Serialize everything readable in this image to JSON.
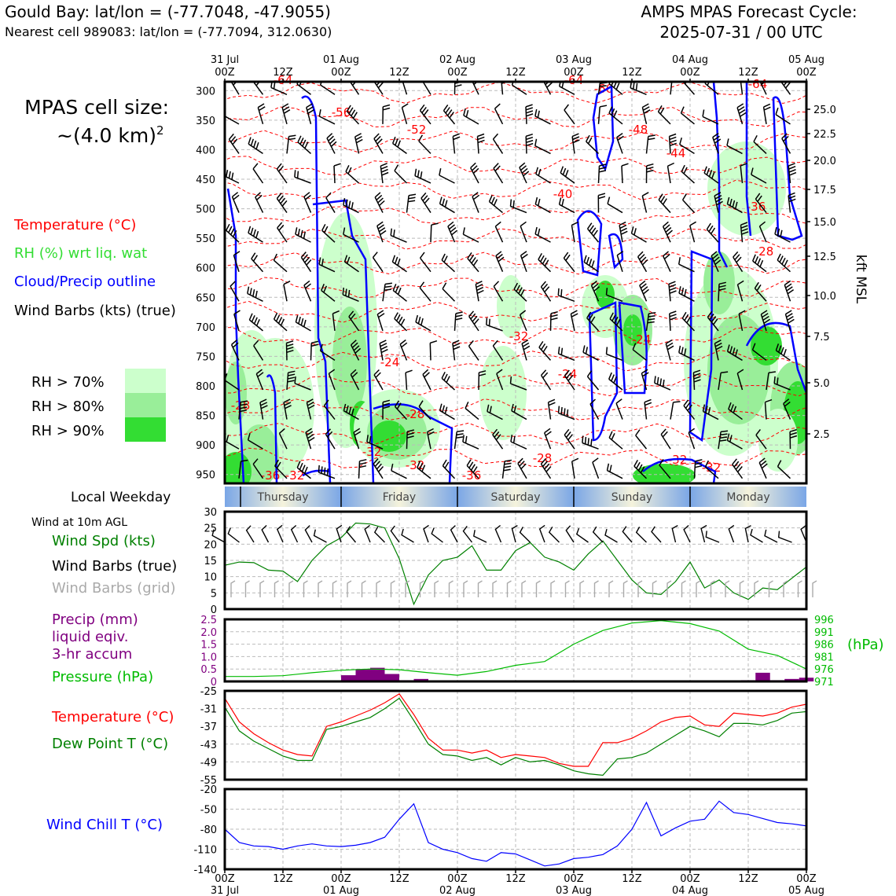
{
  "header": {
    "location_title": "Gould Bay: lat/lon = (-77.7048, -47.9055)",
    "nearest_cell": "Nearest cell 989083: lat/lon = (-77.7094, 312.0630)",
    "forecast_title": "AMPS MPAS Forecast Cycle:",
    "forecast_cycle": "2025-07-31 / 00 UTC"
  },
  "sidebar": {
    "cell_size_line1": "MPAS cell size:",
    "cell_size_line2": "~(4.0 km)",
    "cell_size_exp": "2",
    "legend_temperature": "Temperature (°C)",
    "legend_rh": "RH (%) wrt liq. wat",
    "legend_cloud": "Cloud/Precip outline",
    "legend_wind": "Wind Barbs (kts) (true)",
    "rh_levels": [
      {
        "label": "RH > 70%",
        "color": "#ccffcc"
      },
      {
        "label": "RH > 80%",
        "color": "#99ee99"
      },
      {
        "label": "RH > 90%",
        "color": "#33dd33"
      }
    ],
    "local_weekday_label": "Local Weekday",
    "wind_10m_label": "Wind at 10m AGL",
    "wind_spd_label": "Wind Spd (kts)",
    "wind_barbs_true_label": "Wind Barbs (true)",
    "wind_barbs_grid_label": "Wind Barbs (grid)",
    "precip_label_1": "Precip (mm)",
    "precip_label_2": "liquid eqiv.",
    "precip_label_3": "3-hr accum",
    "pressure_label": "Pressure (hPa)",
    "temp_label": "Temperature (°C)",
    "dewpoint_label": "Dew Point T (°C)",
    "windchill_label": "Wind Chill T (°C)"
  },
  "colors": {
    "temperature": "#ff0000",
    "dewpoint": "#008000",
    "rh_text": "#33dd33",
    "cloud": "#0000ff",
    "precip": "#800080",
    "pressure": "#00bb00",
    "windchill": "#0000ff",
    "grid_barbs": "#aaaaaa",
    "weekday_blue": "#7aa6e6",
    "weekday_cream": "#f5f3dc"
  },
  "chart_data": [
    {
      "type": "cross-section",
      "name": "time-height",
      "top_ticks": [
        {
          "line1": "31 Jul",
          "line2": "00Z"
        },
        {
          "line1": "",
          "line2": "12Z"
        },
        {
          "line1": "01 Aug",
          "line2": "00Z"
        },
        {
          "line1": "",
          "line2": "12Z"
        },
        {
          "line1": "02 Aug",
          "line2": "00Z"
        },
        {
          "line1": "",
          "line2": "12Z"
        },
        {
          "line1": "03 Aug",
          "line2": "00Z"
        },
        {
          "line1": "",
          "line2": "12Z"
        },
        {
          "line1": "04 Aug",
          "line2": "00Z"
        },
        {
          "line1": "",
          "line2": "12Z"
        },
        {
          "line1": "05 Aug",
          "line2": "00Z"
        }
      ],
      "pressure_ticks": [
        "300",
        "350",
        "400",
        "450",
        "500",
        "550",
        "600",
        "650",
        "700",
        "750",
        "800",
        "850",
        "900",
        "950"
      ],
      "kft_ticks": [
        "25.0",
        "22.5",
        "20.0",
        "17.5",
        "15.0",
        "12.5",
        "10.0",
        "7.5",
        "5.0",
        "2.5"
      ],
      "right_axis_label": "kft MSL",
      "temp_contour_labels": [
        "-64",
        "-56",
        "-52",
        "-60",
        "-64",
        "-64",
        "-48",
        "-44",
        "-40",
        "-36",
        "-28",
        "-32",
        "-24",
        "-24",
        "-24",
        "-28",
        "-28",
        "-32",
        "-32",
        "-28",
        "-36",
        "-32",
        "-36",
        "-32",
        "-32"
      ]
    },
    {
      "type": "weekday-strip",
      "days": [
        "Thursday",
        "Friday",
        "Saturday",
        "Sunday",
        "Monday"
      ]
    },
    {
      "type": "line",
      "name": "wind-speed",
      "ylim": [
        0,
        30
      ],
      "yticks": [
        "30",
        "25",
        "20",
        "15",
        "10",
        "5",
        "0"
      ],
      "hours": [
        0,
        3,
        6,
        9,
        12,
        15,
        18,
        21,
        24,
        27,
        30,
        33,
        36,
        39,
        42,
        45,
        48,
        51,
        54,
        57,
        60,
        63,
        66,
        69,
        72,
        75,
        78,
        81,
        84,
        87,
        90,
        93,
        96,
        99,
        102,
        105,
        108,
        111,
        114,
        117,
        120
      ],
      "values": [
        13.5,
        14.5,
        14.3,
        12,
        11.7,
        8.5,
        15,
        19.5,
        22,
        26.5,
        26.2,
        25,
        15.5,
        1.5,
        10.5,
        15,
        16,
        19.5,
        12,
        12,
        18,
        20.5,
        16,
        14.5,
        12,
        17,
        21,
        15,
        9,
        5,
        4.5,
        8.5,
        14.5,
        6.5,
        9,
        5,
        3,
        6.5,
        6,
        9.5,
        13
      ]
    },
    {
      "type": "bar+line",
      "name": "precip-pressure",
      "precip_ylim": [
        0,
        2.5
      ],
      "precip_yticks": [
        "2.5",
        "2.0",
        "1.5",
        "1.0",
        "0.5",
        "0"
      ],
      "pressure_ylim": [
        971,
        996
      ],
      "pressure_yticks": [
        "996",
        "991",
        "986",
        "981",
        "976",
        "971"
      ],
      "pressure_unit": "(hPa)",
      "precip_hours": [
        25.5,
        28.5,
        31.5,
        34.5,
        37.5,
        40.5,
        43.5,
        108,
        111,
        114,
        117,
        120
      ],
      "precip_values": [
        0.25,
        0.5,
        0.55,
        0.3,
        0.05,
        0.1,
        0.02,
        0.05,
        0.35,
        0.05,
        0.1,
        0.15
      ],
      "pressure_hours": [
        0,
        6,
        12,
        18,
        24,
        30,
        36,
        42,
        48,
        54,
        60,
        66,
        72,
        78,
        84,
        90,
        96,
        102,
        108,
        114,
        120
      ],
      "pressure_values": [
        973,
        973,
        973.3,
        974.5,
        975.5,
        976,
        975.7,
        974.5,
        973.5,
        975,
        977.5,
        979,
        986,
        991.5,
        994.5,
        995.5,
        994.3,
        991.3,
        984,
        981.5,
        976
      ]
    },
    {
      "type": "line",
      "name": "temperature-dewpoint",
      "ylim": [
        -55,
        -25
      ],
      "yticks": [
        "-25",
        "-31",
        "-37",
        "-43",
        "-49",
        "-55"
      ],
      "series": [
        {
          "name": "Temperature",
          "hours": [
            0,
            3,
            6,
            9,
            12,
            15,
            18,
            21,
            24,
            27,
            30,
            33,
            36,
            39,
            42,
            45,
            48,
            51,
            54,
            57,
            60,
            63,
            66,
            69,
            72,
            75,
            78,
            81,
            84,
            87,
            90,
            93,
            96,
            99,
            102,
            105,
            108,
            111,
            114,
            117,
            120
          ],
          "values": [
            -27.5,
            -35.5,
            -39.5,
            -42.5,
            -45,
            -46.5,
            -47,
            -37,
            -35.5,
            -33.5,
            -31.5,
            -29,
            -26,
            -33,
            -41,
            -45,
            -45,
            -46,
            -45,
            -47.5,
            -46.5,
            -47,
            -47.5,
            -49.5,
            -50.5,
            -50.5,
            -42.5,
            -42.5,
            -41,
            -38.5,
            -35.5,
            -34,
            -33.5,
            -36.5,
            -37,
            -32.5,
            -33,
            -33.5,
            -32.5,
            -30.5,
            -29.5
          ]
        },
        {
          "name": "Dew Point T",
          "hours": [
            0,
            3,
            6,
            9,
            12,
            15,
            18,
            21,
            24,
            27,
            30,
            33,
            36,
            39,
            42,
            45,
            48,
            51,
            54,
            57,
            60,
            63,
            66,
            69,
            72,
            75,
            78,
            81,
            84,
            87,
            90,
            93,
            96,
            99,
            102,
            105,
            108,
            111,
            114,
            117,
            120
          ],
          "values": [
            -30.5,
            -38.5,
            -42,
            -44.5,
            -47,
            -48.5,
            -48.5,
            -38,
            -37,
            -35.5,
            -34,
            -31,
            -27.5,
            -35,
            -43,
            -46.5,
            -47,
            -48.5,
            -47.5,
            -50,
            -47.5,
            -49,
            -48.5,
            -50,
            -52,
            -53,
            -53.5,
            -48,
            -47.5,
            -46,
            -43,
            -40,
            -37,
            -38.5,
            -40.5,
            -36,
            -36,
            -36.5,
            -35,
            -32.5,
            -32
          ]
        }
      ]
    },
    {
      "type": "line",
      "name": "wind-chill",
      "ylim": [
        -140,
        -20
      ],
      "yticks": [
        "-20",
        "-50",
        "-80",
        "-110",
        "-140"
      ],
      "hours": [
        0,
        3,
        6,
        9,
        12,
        15,
        18,
        21,
        24,
        27,
        30,
        33,
        36,
        39,
        42,
        45,
        48,
        51,
        54,
        57,
        60,
        63,
        66,
        69,
        72,
        75,
        78,
        81,
        84,
        87,
        90,
        93,
        96,
        99,
        102,
        105,
        108,
        111,
        114,
        117,
        120
      ],
      "values": [
        -80,
        -100,
        -105,
        -106,
        -110,
        -105,
        -102,
        -105,
        -106,
        -104,
        -100,
        -92,
        -65,
        -42,
        -100,
        -110,
        -115,
        -124,
        -128,
        -115,
        -117,
        -126,
        -135,
        -132,
        -124,
        -122,
        -118,
        -105,
        -80,
        -40,
        -90,
        -78,
        -68,
        -65,
        -38,
        -55,
        -58,
        -64,
        -70,
        -72,
        -75
      ]
    }
  ],
  "bottom_axis": [
    {
      "line1": "00Z",
      "line2": "31 Jul"
    },
    {
      "line1": "12Z",
      "line2": ""
    },
    {
      "line1": "00Z",
      "line2": "01 Aug"
    },
    {
      "line1": "12Z",
      "line2": ""
    },
    {
      "line1": "00Z",
      "line2": "02 Aug"
    },
    {
      "line1": "12Z",
      "line2": ""
    },
    {
      "line1": "00Z",
      "line2": "03 Aug"
    },
    {
      "line1": "12Z",
      "line2": ""
    },
    {
      "line1": "00Z",
      "line2": "04 Aug"
    },
    {
      "line1": "12Z",
      "line2": ""
    },
    {
      "line1": "00Z",
      "line2": "05 Aug"
    }
  ]
}
